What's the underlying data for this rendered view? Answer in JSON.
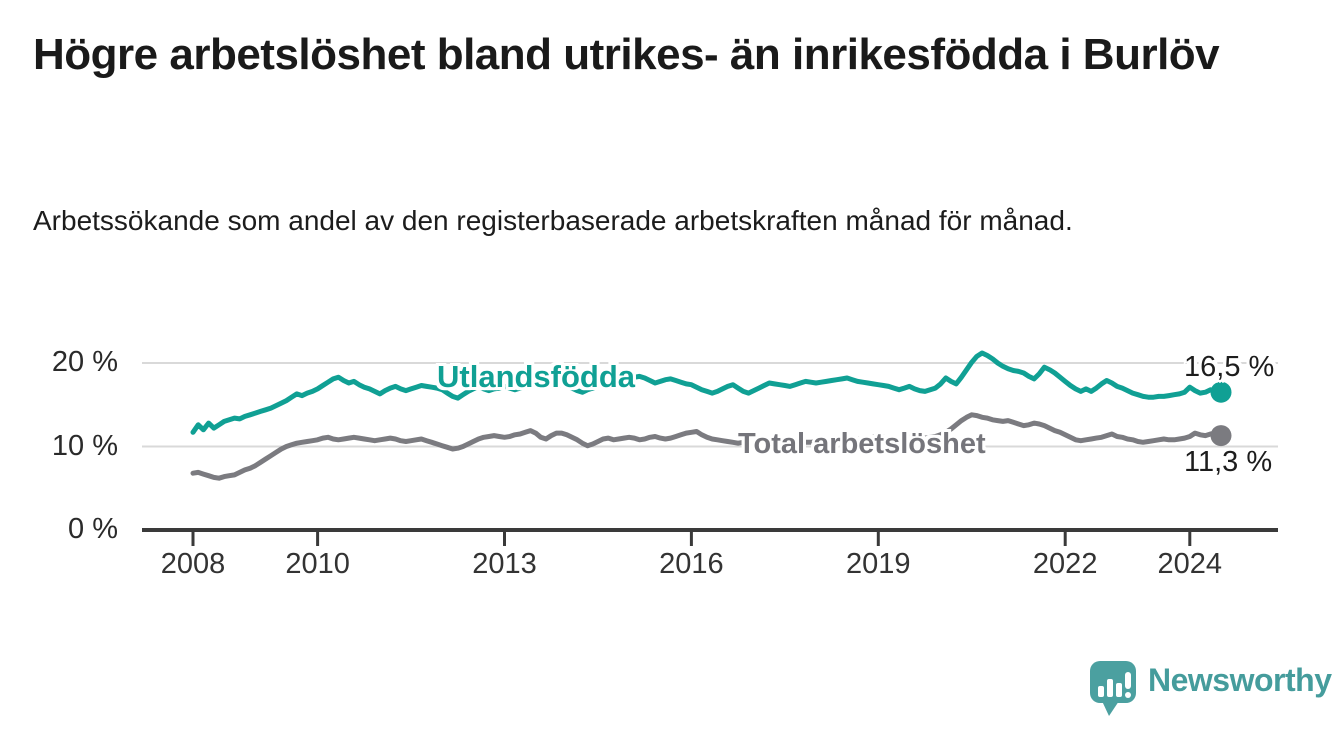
{
  "header": {
    "title": "Högre arbetslöshet bland utrikes- än inrikesfödda i Burlöv",
    "subtitle": "Arbetssökande som andel av den registerbaserade arbetskraften månad för månad."
  },
  "chart_data": {
    "type": "line",
    "title": "Högre arbetslöshet bland utrikes- än inrikesfödda i Burlöv",
    "subtitle": "Arbetssökande som andel av den registerbaserade arbetskraften månad för månad.",
    "frequency": "monthly",
    "x_start": "2008-01",
    "x_end": "2024-07",
    "x_start_year": 2008,
    "ylim": [
      0,
      23
    ],
    "grid": "horizontal",
    "legend_position": "inline-labels",
    "yticks": [
      {
        "value": 20,
        "label": "20 %"
      },
      {
        "value": 10,
        "label": "10 %"
      },
      {
        "value": 0,
        "label": "0 %"
      }
    ],
    "xticks": [
      {
        "year": 2008,
        "label": "2008"
      },
      {
        "year": 2010,
        "label": "2010"
      },
      {
        "year": 2013,
        "label": "2013"
      },
      {
        "year": 2016,
        "label": "2016"
      },
      {
        "year": 2019,
        "label": "2019"
      },
      {
        "year": 2022,
        "label": "2022"
      },
      {
        "year": 2024,
        "label": "2024"
      }
    ],
    "series": [
      {
        "name": "Utlandsfödda",
        "color": "#10a094",
        "end_label": "16,5 %",
        "end_value": 16.5,
        "values": [
          11.7,
          12.6,
          12.0,
          12.8,
          12.2,
          12.6,
          13.0,
          13.2,
          13.4,
          13.3,
          13.6,
          13.8,
          14.0,
          14.2,
          14.4,
          14.6,
          14.9,
          15.2,
          15.5,
          15.9,
          16.3,
          16.1,
          16.4,
          16.6,
          16.9,
          17.3,
          17.7,
          18.1,
          18.3,
          17.9,
          17.6,
          17.8,
          17.4,
          17.1,
          16.9,
          16.6,
          16.3,
          16.7,
          17.0,
          17.2,
          16.9,
          16.7,
          16.9,
          17.1,
          17.3,
          17.2,
          17.1,
          17.0,
          16.8,
          16.4,
          16.0,
          15.8,
          16.2,
          16.6,
          16.9,
          17.2,
          16.9,
          16.7,
          16.9,
          17.0,
          17.2,
          17.0,
          16.8,
          17.0,
          17.2,
          17.1,
          17.3,
          17.5,
          17.4,
          17.2,
          17.3,
          17.4,
          17.2,
          17.0,
          16.7,
          16.5,
          16.8,
          17.0,
          17.2,
          17.4,
          17.6,
          17.8,
          17.9,
          18.0,
          18.1,
          18.3,
          18.4,
          18.2,
          17.9,
          17.6,
          17.8,
          18.0,
          18.1,
          17.9,
          17.7,
          17.5,
          17.4,
          17.1,
          16.8,
          16.6,
          16.4,
          16.6,
          16.9,
          17.2,
          17.4,
          17.0,
          16.6,
          16.4,
          16.7,
          17.0,
          17.3,
          17.6,
          17.5,
          17.4,
          17.3,
          17.2,
          17.4,
          17.6,
          17.8,
          17.7,
          17.6,
          17.7,
          17.8,
          17.9,
          18.0,
          18.1,
          18.2,
          18.0,
          17.8,
          17.7,
          17.6,
          17.5,
          17.4,
          17.3,
          17.2,
          17.0,
          16.8,
          17.0,
          17.2,
          16.9,
          16.7,
          16.6,
          16.8,
          17.0,
          17.5,
          18.2,
          17.8,
          17.5,
          18.3,
          19.2,
          20.1,
          20.8,
          21.2,
          20.9,
          20.5,
          20.0,
          19.6,
          19.3,
          19.1,
          19.0,
          18.8,
          18.4,
          18.1,
          18.7,
          19.5,
          19.2,
          18.8,
          18.3,
          17.8,
          17.3,
          16.9,
          16.6,
          16.9,
          16.6,
          17.0,
          17.5,
          17.9,
          17.6,
          17.2,
          17.0,
          16.7,
          16.4,
          16.2,
          16.0,
          15.9,
          15.9,
          16.0,
          16.0,
          16.1,
          16.2,
          16.3,
          16.5,
          17.1,
          16.7,
          16.4,
          16.5,
          16.8,
          16.6,
          16.5
        ]
      },
      {
        "name": "Total arbetslöshet",
        "color": "#7b7b80",
        "end_label": "11,3 %",
        "end_value": 11.3,
        "values": [
          6.8,
          6.9,
          6.7,
          6.5,
          6.3,
          6.2,
          6.4,
          6.5,
          6.6,
          6.9,
          7.2,
          7.4,
          7.7,
          8.1,
          8.5,
          8.9,
          9.3,
          9.7,
          10.0,
          10.2,
          10.4,
          10.5,
          10.6,
          10.7,
          10.8,
          11.0,
          11.1,
          10.9,
          10.8,
          10.9,
          11.0,
          11.1,
          11.0,
          10.9,
          10.8,
          10.7,
          10.8,
          10.9,
          11.0,
          10.9,
          10.7,
          10.6,
          10.7,
          10.8,
          10.9,
          10.7,
          10.5,
          10.3,
          10.1,
          9.9,
          9.7,
          9.8,
          10.0,
          10.3,
          10.6,
          10.9,
          11.1,
          11.2,
          11.3,
          11.2,
          11.1,
          11.2,
          11.4,
          11.5,
          11.7,
          11.9,
          11.6,
          11.1,
          10.9,
          11.3,
          11.6,
          11.6,
          11.4,
          11.1,
          10.8,
          10.4,
          10.1,
          10.3,
          10.6,
          10.9,
          11.0,
          10.8,
          10.9,
          11.0,
          11.1,
          11.0,
          10.8,
          10.9,
          11.1,
          11.2,
          11.0,
          10.9,
          11.0,
          11.2,
          11.4,
          11.6,
          11.7,
          11.8,
          11.4,
          11.1,
          10.9,
          10.8,
          10.7,
          10.6,
          10.5,
          10.4,
          10.5,
          10.6,
          10.5,
          10.4,
          10.3,
          10.2,
          10.2,
          10.1,
          10.2,
          10.3,
          10.4,
          10.4,
          10.5,
          10.5,
          10.6,
          10.5,
          10.4,
          10.4,
          10.5,
          10.6,
          10.7,
          10.8,
          10.9,
          11.0,
          11.0,
          11.1,
          11.2,
          11.1,
          11.0,
          10.9,
          10.9,
          11.0,
          11.1,
          11.2,
          11.1,
          11.0,
          11.1,
          11.2,
          11.4,
          11.7,
          12.1,
          12.6,
          13.1,
          13.5,
          13.8,
          13.7,
          13.5,
          13.4,
          13.2,
          13.1,
          13.0,
          13.1,
          12.9,
          12.7,
          12.5,
          12.6,
          12.8,
          12.7,
          12.5,
          12.2,
          11.9,
          11.7,
          11.4,
          11.1,
          10.8,
          10.7,
          10.8,
          10.9,
          11.0,
          11.1,
          11.3,
          11.5,
          11.2,
          11.1,
          10.9,
          10.8,
          10.6,
          10.5,
          10.6,
          10.7,
          10.8,
          10.9,
          10.8,
          10.8,
          10.9,
          11.0,
          11.2,
          11.6,
          11.4,
          11.3,
          11.5,
          11.6,
          11.3
        ]
      }
    ]
  },
  "branding": {
    "logo_text": "Newsworthy",
    "logo_icon": "bar-chart-speech-bubble-icon",
    "color": "#459c9c",
    "icon_color": "#4ba0a0"
  }
}
